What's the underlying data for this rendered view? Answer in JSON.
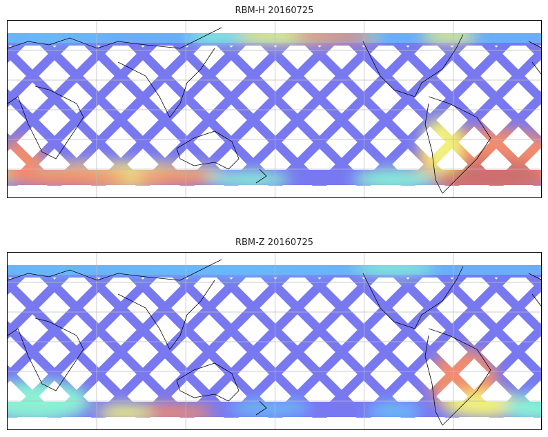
{
  "panels": [
    {
      "title": "RBM-H 20160725",
      "date": "20160725",
      "variable": "RBM-H"
    },
    {
      "title": "RBM-Z 20160725",
      "date": "20160725",
      "variable": "RBM-Z"
    }
  ],
  "colors": {
    "low": "#6a6af0",
    "mid_low": "#5ab4f8",
    "mid": "#7ef0d0",
    "mid_high": "#f0f070",
    "high": "#f08060",
    "max": "#c86060"
  },
  "colormap": "jet (semi-transparent)",
  "gridlines": true,
  "coastlines": true
}
